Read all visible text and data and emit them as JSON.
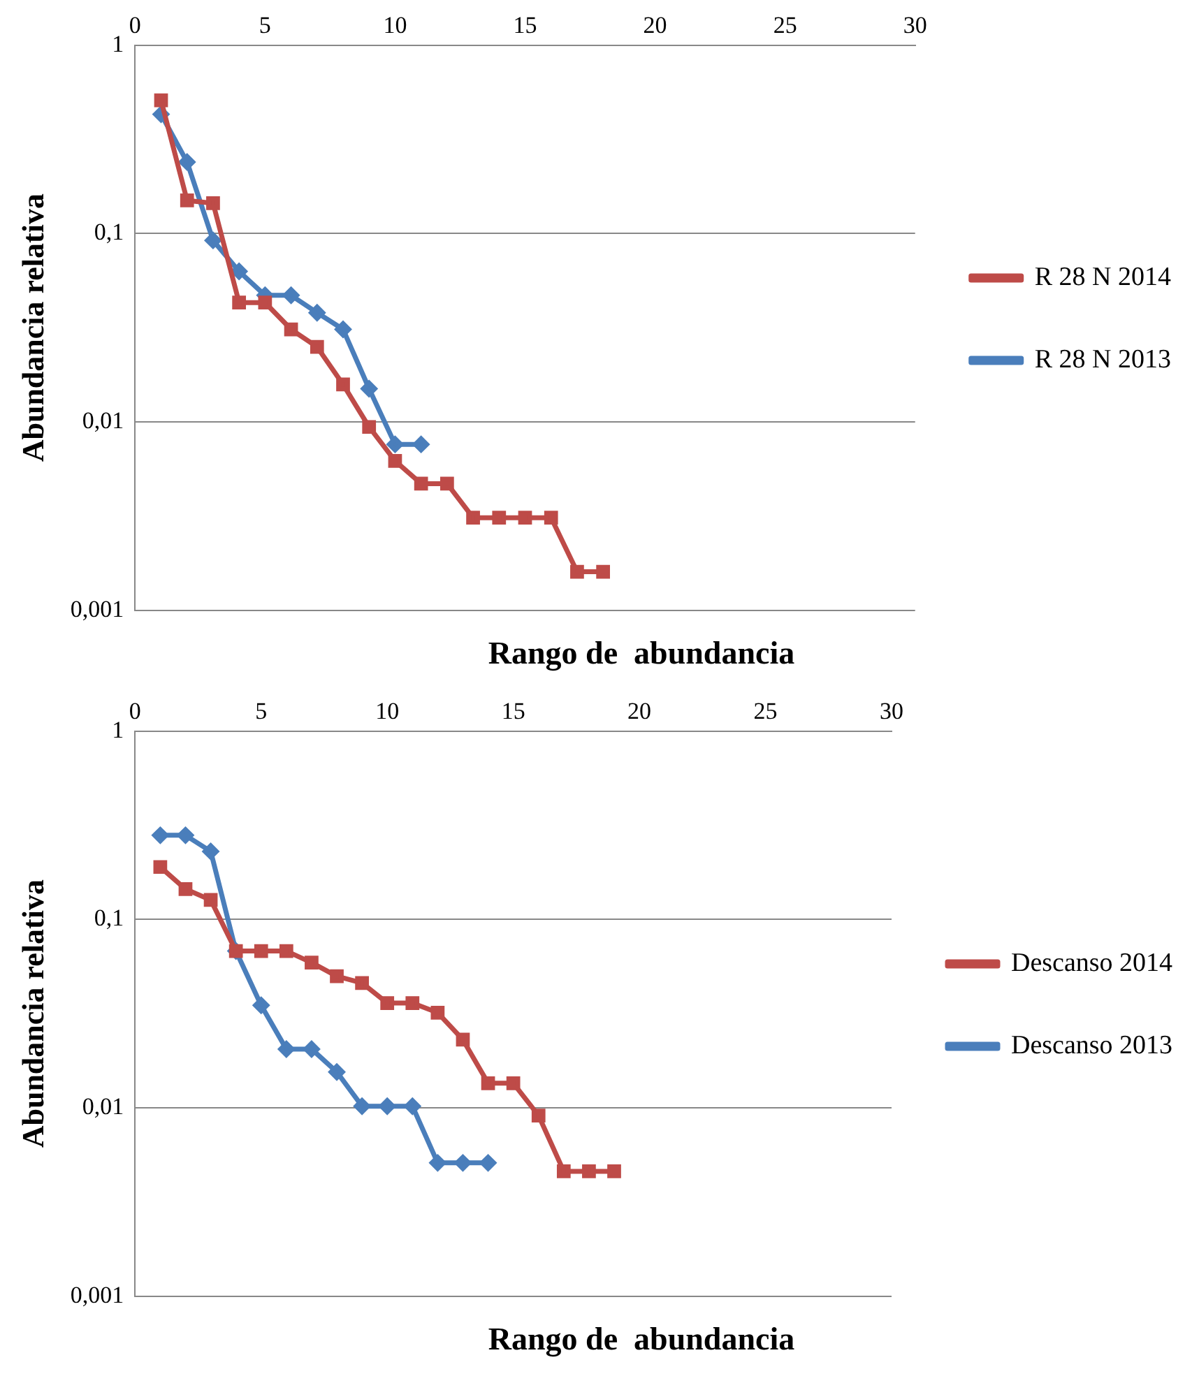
{
  "chart_data": [
    {
      "type": "line",
      "xlabel": "Rango de  abundancia",
      "ylabel": "Abundancia relativa",
      "log": "y",
      "grid": "y",
      "legend": "right",
      "xlim": [
        0,
        30
      ],
      "xticks": [
        0,
        5,
        10,
        15,
        20,
        25,
        30
      ],
      "ylim": [
        0.001,
        1
      ],
      "yticks": [
        {
          "value": 1,
          "label": "1"
        },
        {
          "value": 0.1,
          "label": "0,1"
        },
        {
          "value": 0.01,
          "label": "0,01"
        },
        {
          "value": 0.001,
          "label": "0,001"
        }
      ],
      "series": [
        {
          "name": "R 28 N 2013",
          "color": "#4a7ebb",
          "marker": "diamond",
          "x": [
            1,
            2,
            3,
            4,
            5,
            6,
            7,
            8,
            9,
            10,
            11
          ],
          "values": [
            0.43,
            0.24,
            0.092,
            0.063,
            0.047,
            0.047,
            0.038,
            0.031,
            0.015,
            0.0076,
            0.0076
          ]
        },
        {
          "name": "R 28 N 2014",
          "color": "#be4b48",
          "marker": "square",
          "x": [
            1,
            2,
            3,
            4,
            5,
            6,
            7,
            8,
            9,
            10,
            11,
            12,
            13,
            14,
            15,
            16,
            17,
            18
          ],
          "values": [
            0.51,
            0.15,
            0.145,
            0.043,
            0.043,
            0.031,
            0.025,
            0.0158,
            0.0094,
            0.0062,
            0.0047,
            0.0047,
            0.0031,
            0.0031,
            0.0031,
            0.0031,
            0.0016,
            0.0016
          ]
        }
      ]
    },
    {
      "type": "line",
      "xlabel": "Rango de  abundancia",
      "ylabel": "Abundancia relativa",
      "log": "y",
      "grid": "y",
      "legend": "right",
      "xlim": [
        0,
        30
      ],
      "xticks": [
        0,
        5,
        10,
        15,
        20,
        25,
        30
      ],
      "ylim": [
        0.001,
        1
      ],
      "yticks": [
        {
          "value": 1,
          "label": "1"
        },
        {
          "value": 0.1,
          "label": "0,1"
        },
        {
          "value": 0.01,
          "label": "0,01"
        },
        {
          "value": 0.001,
          "label": "0,001"
        }
      ],
      "series": [
        {
          "name": "Descanso 2013",
          "color": "#4a7ebb",
          "marker": "diamond",
          "x": [
            1,
            2,
            3,
            4,
            5,
            6,
            7,
            8,
            9,
            10,
            11,
            12,
            13,
            14
          ],
          "values": [
            0.28,
            0.28,
            0.23,
            0.068,
            0.035,
            0.0205,
            0.0205,
            0.0155,
            0.0102,
            0.0102,
            0.0102,
            0.0051,
            0.0051,
            0.0051
          ]
        },
        {
          "name": "Descanso 2014",
          "color": "#be4b48",
          "marker": "square",
          "x": [
            1,
            2,
            3,
            4,
            5,
            6,
            7,
            8,
            9,
            10,
            11,
            12,
            13,
            14,
            15,
            16,
            17,
            18,
            19
          ],
          "values": [
            0.19,
            0.145,
            0.127,
            0.068,
            0.068,
            0.068,
            0.059,
            0.05,
            0.046,
            0.036,
            0.036,
            0.032,
            0.023,
            0.0135,
            0.0135,
            0.0091,
            0.0046,
            0.0046,
            0.0046
          ]
        }
      ]
    }
  ]
}
